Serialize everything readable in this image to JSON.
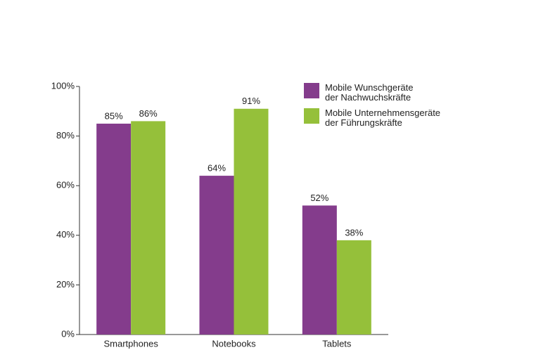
{
  "chart_data": {
    "type": "bar",
    "categories": [
      "Smartphones",
      "Notebooks",
      "Tablets"
    ],
    "series": [
      {
        "name": "Mobile Wunschgeräte\nder Nachwuchskräfte",
        "color": "#843c8c",
        "values": [
          85,
          64,
          52
        ],
        "value_labels": [
          "85%",
          "64%",
          "52%"
        ]
      },
      {
        "name": "Mobile Unternehmensgeräte\nder Führungskräfte",
        "color": "#95c03a",
        "values": [
          86,
          91,
          38
        ],
        "value_labels": [
          "86%",
          "91%",
          "38%"
        ]
      }
    ],
    "ylim": [
      0,
      100
    ],
    "yticks": [
      {
        "value": 0,
        "label": "0%"
      },
      {
        "value": 20,
        "label": "20%"
      },
      {
        "value": 40,
        "label": "40%"
      },
      {
        "value": 60,
        "label": "60%"
      },
      {
        "value": 80,
        "label": "80%"
      },
      {
        "value": 100,
        "label": "100%"
      }
    ],
    "grid": false,
    "legend": "top-right"
  }
}
